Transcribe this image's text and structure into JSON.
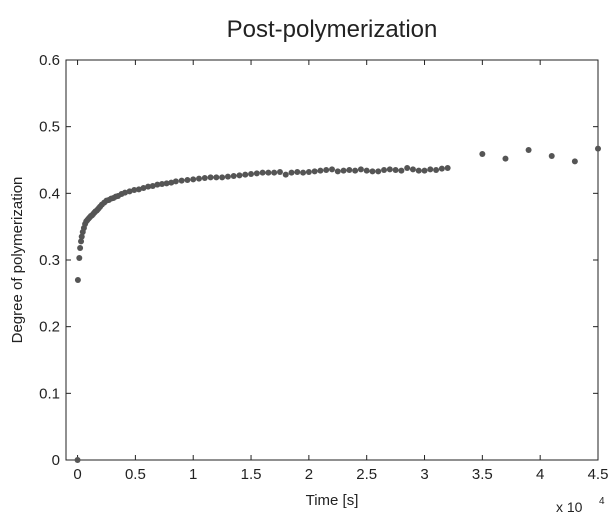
{
  "chart_data": {
    "type": "scatter",
    "title": "Post-polymerization",
    "xlabel": "Time [s]",
    "ylabel": "Degree of polymerization",
    "x_multiplier_label": "x 10",
    "x_multiplier_exponent": "4",
    "xlim": [
      -1000,
      45000
    ],
    "ylim": [
      0,
      0.6
    ],
    "x_ticks": [
      0,
      5000,
      10000,
      15000,
      20000,
      25000,
      30000,
      35000,
      40000,
      45000
    ],
    "x_tick_labels": [
      "0",
      "0.5",
      "1",
      "1.5",
      "2",
      "2.5",
      "3",
      "3.5",
      "4",
      "4.5"
    ],
    "y_ticks": [
      0,
      0.1,
      0.2,
      0.3,
      0.4,
      0.5,
      0.6
    ],
    "y_tick_labels": [
      "0",
      "0.1",
      "0.2",
      "0.3",
      "0.4",
      "0.5",
      "0.6"
    ],
    "grid": false,
    "marker_color": "#555555",
    "series": [
      {
        "x": [
          0,
          30,
          150,
          220,
          300,
          360,
          450,
          550,
          650,
          750,
          850,
          950,
          1050,
          1150,
          1250,
          1350,
          1450,
          1550,
          1650,
          1750,
          1850,
          1950,
          2100,
          2300,
          2500,
          2700,
          2900,
          3100,
          3300,
          3500,
          3800,
          4100,
          4500,
          4900,
          5300,
          5700,
          6100,
          6500,
          6900,
          7300,
          7700,
          8100,
          8500,
          9000,
          9500,
          10000,
          10500,
          11000,
          11500,
          12000,
          12500,
          13000,
          13500,
          14000,
          14500,
          15000,
          15500,
          16000,
          16500,
          17000,
          17500,
          18000,
          18500,
          19000,
          19500,
          20000,
          20500,
          21000,
          21500,
          22000,
          22500,
          23000,
          23500,
          24000,
          24500,
          25000,
          25500,
          26000,
          26500,
          27000,
          27500,
          28000,
          28500,
          29000,
          29500,
          30000,
          30500,
          31000,
          31500,
          32000,
          35000,
          37000,
          39000,
          41000,
          43000,
          45000
        ],
        "y": [
          0,
          0.27,
          0.303,
          0.318,
          0.328,
          0.335,
          0.342,
          0.348,
          0.354,
          0.358,
          0.36,
          0.362,
          0.364,
          0.366,
          0.367,
          0.369,
          0.371,
          0.373,
          0.374,
          0.376,
          0.378,
          0.38,
          0.383,
          0.386,
          0.389,
          0.39,
          0.392,
          0.393,
          0.395,
          0.396,
          0.399,
          0.401,
          0.403,
          0.405,
          0.406,
          0.408,
          0.41,
          0.411,
          0.413,
          0.414,
          0.415,
          0.416,
          0.418,
          0.419,
          0.42,
          0.421,
          0.422,
          0.423,
          0.424,
          0.424,
          0.424,
          0.425,
          0.426,
          0.427,
          0.428,
          0.429,
          0.43,
          0.431,
          0.431,
          0.431,
          0.432,
          0.428,
          0.431,
          0.432,
          0.431,
          0.432,
          0.433,
          0.434,
          0.435,
          0.436,
          0.433,
          0.434,
          0.435,
          0.434,
          0.436,
          0.434,
          0.433,
          0.433,
          0.435,
          0.436,
          0.435,
          0.434,
          0.438,
          0.436,
          0.434,
          0.434,
          0.436,
          0.435,
          0.437,
          0.438,
          0.459,
          0.452,
          0.465,
          0.456,
          0.448,
          0.467
        ]
      }
    ]
  }
}
